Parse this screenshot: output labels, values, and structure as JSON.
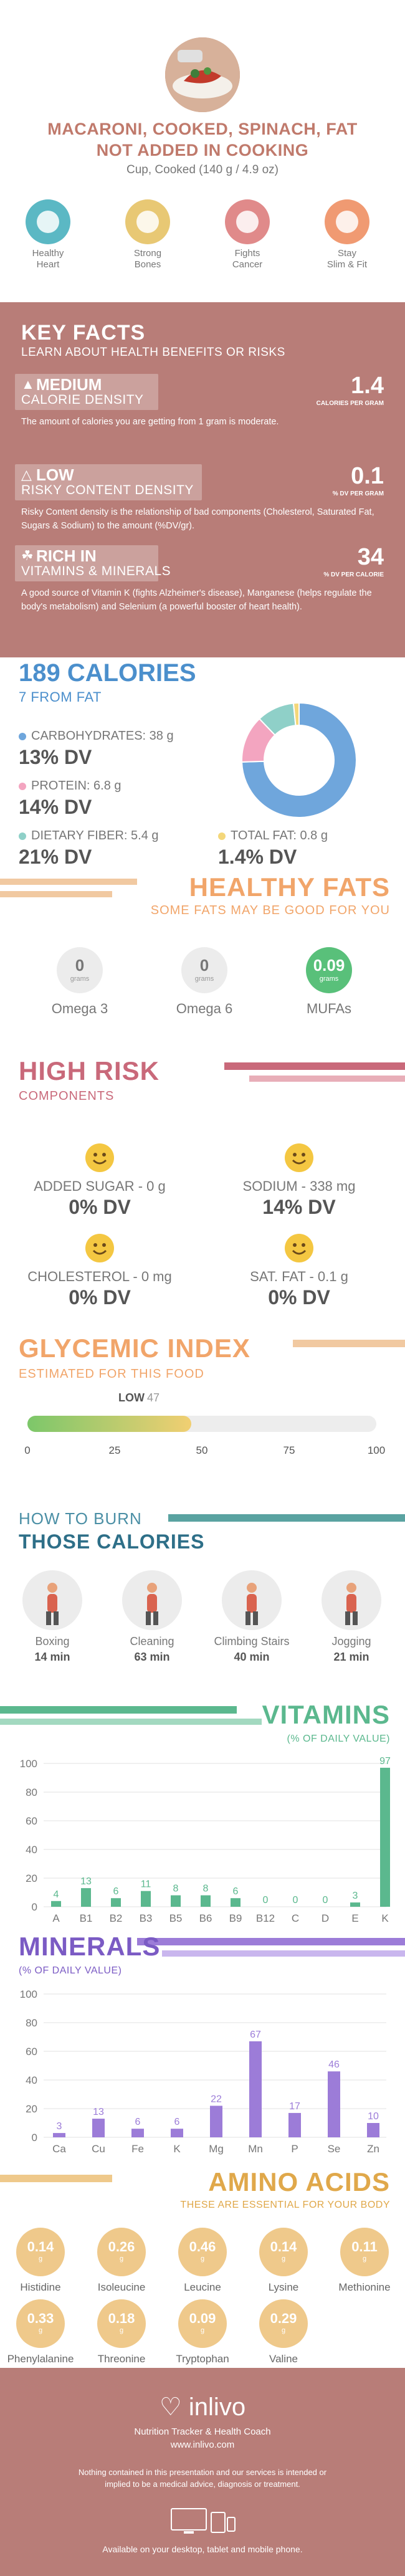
{
  "header": {
    "title_line1": "MACARONI, COOKED, SPINACH, FAT",
    "title_line2": "NOT ADDED IN COOKING",
    "serving": "Cup, Cooked (140 g / 4.9 oz)"
  },
  "benefits": [
    {
      "label": "Healthy\nHeart",
      "icon": "heart-pulse-icon",
      "color": "#5bb8c4"
    },
    {
      "label": "Strong\nBones",
      "icon": "bone-icon",
      "color": "#e8c874"
    },
    {
      "label": "Fights\nCancer",
      "icon": "ribbon-icon",
      "color": "#e08a8a"
    },
    {
      "label": "Stay\nSlim & Fit",
      "icon": "scale-icon",
      "color": "#f09a72"
    }
  ],
  "key_facts": {
    "title": "KEY FACTS",
    "subtitle": "LEARN ABOUT HEALTH BENEFITS OR RISKS",
    "items": [
      {
        "level": "MEDIUM",
        "name": "CALORIE DENSITY",
        "value": "1.4",
        "unit": "CALORIES PER GRAM",
        "desc": "The amount of calories you are getting from 1 gram is moderate."
      },
      {
        "level": "LOW",
        "name": "RISKY CONTENT DENSITY",
        "value": "0.1",
        "unit": "% DV PER GRAM",
        "desc": "Risky Content density is the relationship of bad components (Cholesterol, Saturated Fat, Sugars & Sodium) to the amount (%DV/gr)."
      },
      {
        "level": "RICH  IN",
        "name": "VITAMINS & MINERALS",
        "value": "34",
        "unit": "% DV PER CALORIE",
        "desc": "A good source of Vitamin K (fights Alzheimer's disease), Manganese (helps regulate the body's metabolism) and Selenium (a powerful booster of heart health)."
      }
    ]
  },
  "calories": {
    "title": "189 CALORIES",
    "from_fat": "7 FROM FAT",
    "nutrients": [
      {
        "label": "CARBOHYDRATES: 38 g",
        "dv": "13% DV",
        "color": "#6fa6dc",
        "grams": 38
      },
      {
        "label": "PROTEIN: 6.8 g",
        "dv": "14% DV",
        "color": "#f3a5c0",
        "grams": 6.8
      },
      {
        "label": "DIETARY FIBER: 5.4 g",
        "dv": "21% DV",
        "color": "#8fd0c8",
        "grams": 5.4
      },
      {
        "label": "TOTAL FAT: 0.8 g",
        "dv": "1.4% DV",
        "color": "#f4d77a",
        "grams": 0.8
      }
    ]
  },
  "healthy_fats": {
    "title": "HEALTHY FATS",
    "subtitle": "SOME FATS MAY BE GOOD FOR YOU",
    "items": [
      {
        "value": "0",
        "unit": "grams",
        "label": "Omega 3"
      },
      {
        "value": "0",
        "unit": "grams",
        "label": "Omega 6"
      },
      {
        "value": "0.09",
        "unit": "grams",
        "label": "MUFAs"
      }
    ]
  },
  "high_risk": {
    "title": "HIGH RISK",
    "subtitle": "COMPONENTS",
    "items": [
      {
        "label": "ADDED SUGAR - 0 g",
        "dv": "0% DV"
      },
      {
        "label": "SODIUM - 338 mg",
        "dv": "14% DV"
      },
      {
        "label": "CHOLESTEROL - 0 mg",
        "dv": "0% DV"
      },
      {
        "label": "SAT. FAT - 0.1 g",
        "dv": "0% DV"
      }
    ]
  },
  "glycemic": {
    "title": "GLYCEMIC INDEX",
    "subtitle": "ESTIMATED FOR THIS FOOD",
    "level": "LOW",
    "value": 47,
    "ticks": [
      "0",
      "25",
      "50",
      "75",
      "100"
    ]
  },
  "burn": {
    "title1": "HOW TO BURN",
    "title2": "THOSE CALORIES",
    "items": [
      {
        "label": "Boxing",
        "time": "14 min",
        "icon": "boxing-icon"
      },
      {
        "label": "Cleaning",
        "time": "63 min",
        "icon": "cleaning-icon"
      },
      {
        "label": "Climbing Stairs",
        "time": "40 min",
        "icon": "stairs-icon"
      },
      {
        "label": "Jogging",
        "time": "21 min",
        "icon": "jogging-icon"
      }
    ]
  },
  "chart_data": [
    {
      "type": "bar",
      "title": "VITAMINS",
      "subtitle": "(% OF DAILY VALUE)",
      "categories": [
        "A",
        "B1",
        "B2",
        "B3",
        "B5",
        "B6",
        "B9",
        "B12",
        "C",
        "D",
        "E",
        "K"
      ],
      "values": [
        4,
        13,
        6,
        11,
        8,
        8,
        6,
        0,
        0,
        0,
        3,
        97
      ],
      "yticks": [
        "0",
        "20",
        "40",
        "60",
        "80",
        "100"
      ],
      "ylim": [
        0,
        100
      ],
      "color": "#5bb88e"
    },
    {
      "type": "bar",
      "title": "MINERALS",
      "subtitle": "(% OF DAILY VALUE)",
      "categories": [
        "Ca",
        "Cu",
        "Fe",
        "K",
        "Mg",
        "Mn",
        "P",
        "Se",
        "Zn"
      ],
      "values": [
        3,
        13,
        6,
        6,
        22,
        67,
        17,
        46,
        10
      ],
      "yticks": [
        "0",
        "20",
        "40",
        "60",
        "80",
        "100"
      ],
      "ylim": [
        0,
        100
      ],
      "color": "#9c7cd8"
    }
  ],
  "amino": {
    "title": "AMINO ACIDS",
    "subtitle": "THESE ARE ESSENTIAL FOR YOUR BODY",
    "unit": "g",
    "items": [
      {
        "value": "0.14",
        "label": "Histidine"
      },
      {
        "value": "0.26",
        "label": "Isoleucine"
      },
      {
        "value": "0.46",
        "label": "Leucine"
      },
      {
        "value": "0.14",
        "label": "Lysine"
      },
      {
        "value": "0.11",
        "label": "Methionine"
      },
      {
        "value": "0.33",
        "label": "Phenylalanine"
      },
      {
        "value": "0.18",
        "label": "Threonine"
      },
      {
        "value": "0.09",
        "label": "Tryptophan"
      },
      {
        "value": "0.29",
        "label": "Valine"
      }
    ]
  },
  "footer": {
    "brand": "inlivo",
    "tagline": "Nutrition Tracker & Health Coach",
    "url": "www.inlivo.com",
    "disclaimer": "Nothing contained in this presentation and our services is intended or implied to be a medical advice, diagnosis or treatment.",
    "available": "Available on your desktop, tablet and mobile phone."
  }
}
